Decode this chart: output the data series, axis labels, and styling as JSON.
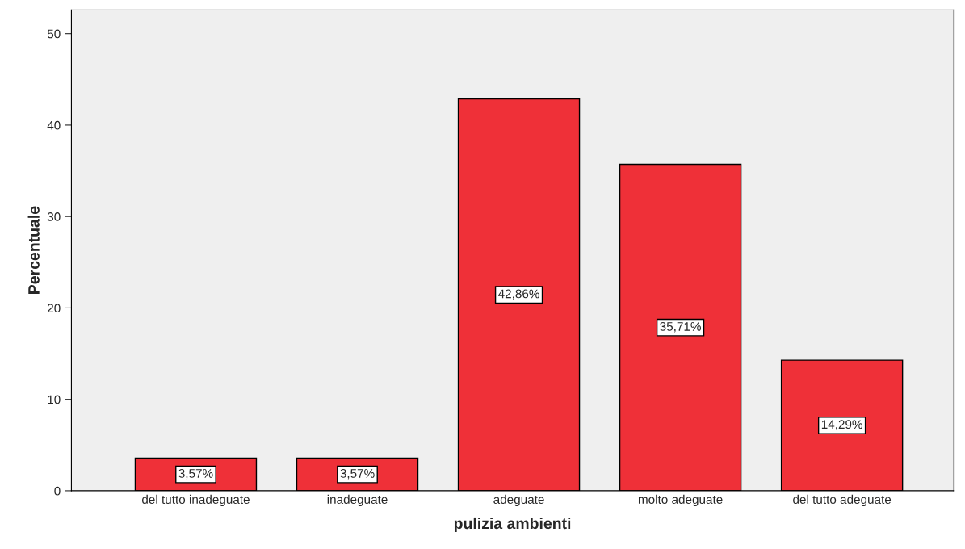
{
  "chart_data": {
    "type": "bar",
    "xlabel": "pulizia ambienti",
    "ylabel": "Percentuale",
    "categories": [
      "del tutto inadeguate",
      "inadeguate",
      "adeguate",
      "molto adeguate",
      "del tutto adeguate"
    ],
    "values": [
      3.57,
      3.57,
      42.86,
      35.71,
      14.29
    ],
    "value_labels": [
      "3,57%",
      "3,57%",
      "42,86%",
      "35,71%",
      "14,29%"
    ],
    "color": "#ef3038",
    "ylim": [
      0,
      52.6
    ],
    "yticks": [
      0,
      10,
      20,
      30,
      40,
      50
    ],
    "grid": false,
    "legend": false
  }
}
